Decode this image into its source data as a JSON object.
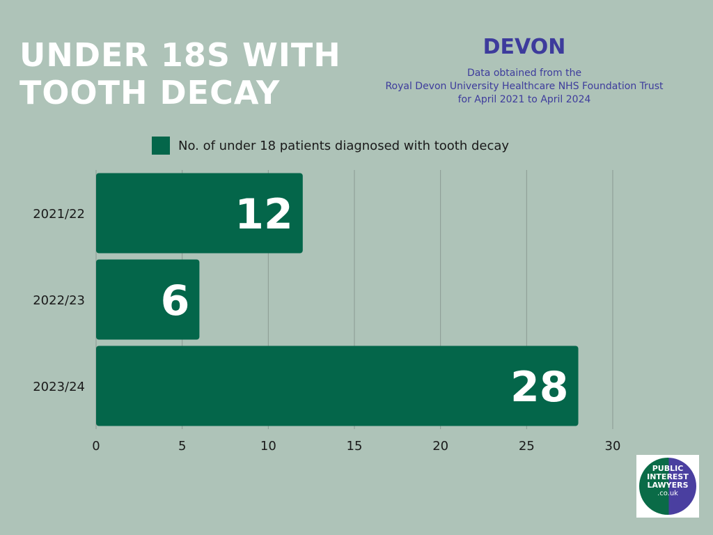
{
  "header": {
    "title_lines": [
      "UNDER 18S WITH",
      "TOOTH DECAY"
    ],
    "region": "DEVON",
    "source_lines": [
      "Data obtained from the",
      "Royal Devon University Healthcare NHS Foundation Trust",
      "for April 2021 to April 2024"
    ]
  },
  "colors": {
    "background": "#aec3b8",
    "bar": "#04664a",
    "accent_text": "#3d3b9c",
    "title_text": "#ffffff",
    "gridline": "#8a9a92"
  },
  "chart_data": {
    "type": "bar",
    "orientation": "horizontal",
    "categories": [
      "2021/22",
      "2022/23",
      "2023/24"
    ],
    "series": [
      {
        "name": "No. of under 18 patients diagnosed with tooth decay",
        "values": [
          12,
          6,
          28
        ]
      }
    ],
    "xlim": [
      0,
      30
    ],
    "xticks": [
      0,
      5,
      10,
      15,
      20,
      25,
      30
    ],
    "grid": true,
    "legend_placement": "top",
    "data_labels": true
  },
  "logo": {
    "lines": [
      "PUBLIC",
      "INTEREST",
      "LAWYERS",
      ".co.uk"
    ],
    "icon": "public-interest-lawyers-logo"
  }
}
